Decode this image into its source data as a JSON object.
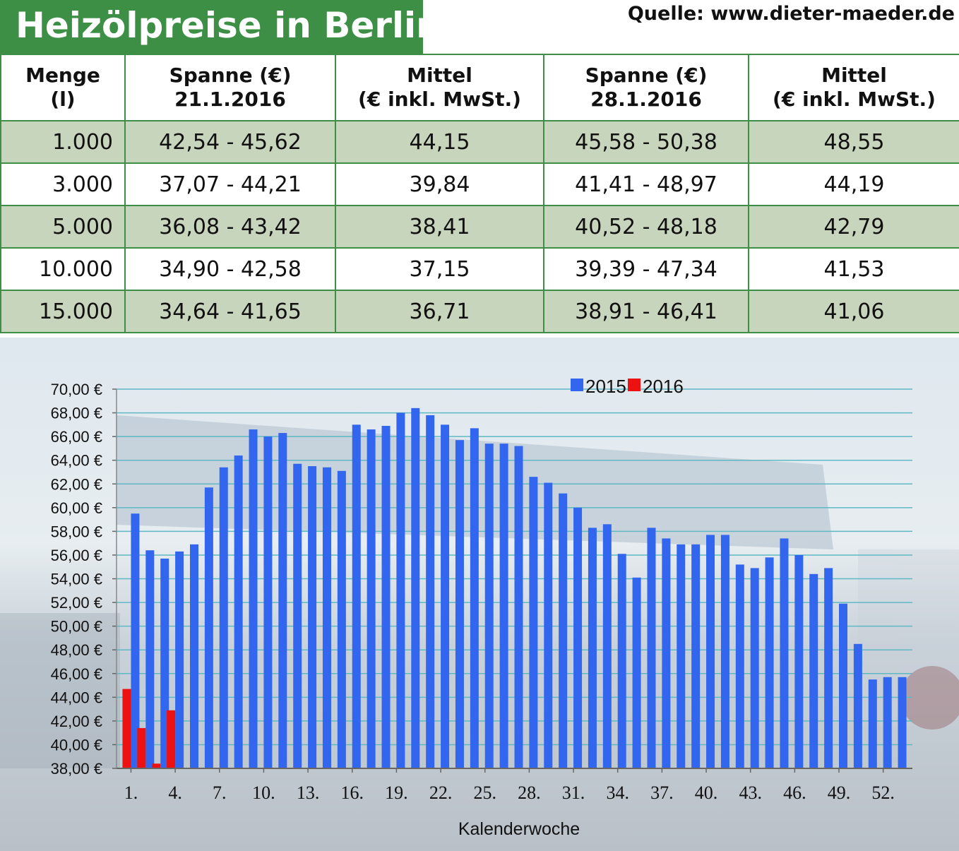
{
  "header": {
    "title": "Heizölpreise in Berlin",
    "source": "Quelle: www.dieter-maeder.de"
  },
  "table": {
    "columns": [
      {
        "line1": "Menge",
        "line2": "(l)"
      },
      {
        "line1": "Spanne (€)",
        "line2": "21.1.2016"
      },
      {
        "line1": "Mittel",
        "line2": "(€ inkl. MwSt.)"
      },
      {
        "line1": "Spanne (€)",
        "line2": "28.1.2016"
      },
      {
        "line1": "Mittel",
        "line2": "(€ inkl. MwSt.)"
      }
    ],
    "rows": [
      [
        "1.000",
        "42,54 - 45,62",
        "44,15",
        "45,58 - 50,38",
        "48,55"
      ],
      [
        "3.000",
        "37,07 - 44,21",
        "39,84",
        "41,41 - 48,97",
        "44,19"
      ],
      [
        "5.000",
        "36,08 - 43,42",
        "38,41",
        "40,52 - 48,18",
        "42,79"
      ],
      [
        "10.000",
        "34,90 - 42,58",
        "37,15",
        "39,39 - 47,34",
        "41,53"
      ],
      [
        "15.000",
        "34,64 - 41,65",
        "36,71",
        "38,91 - 46,41",
        "41,06"
      ]
    ]
  },
  "chart_data": {
    "type": "bar",
    "xlabel": "Kalenderwoche",
    "ylabel": "",
    "ylim": [
      38,
      70
    ],
    "yticks": [
      "38,00 €",
      "40,00 €",
      "42,00 €",
      "44,00 €",
      "46,00 €",
      "48,00 €",
      "50,00 €",
      "52,00 €",
      "54,00 €",
      "56,00 €",
      "58,00 €",
      "60,00 €",
      "62,00 €",
      "64,00 €",
      "66,00 €",
      "68,00 €",
      "70,00 €"
    ],
    "xticks": [
      "1.",
      "4.",
      "7.",
      "10.",
      "13.",
      "16.",
      "19.",
      "22.",
      "25.",
      "28.",
      "31.",
      "34.",
      "37.",
      "40.",
      "43.",
      "46.",
      "49.",
      "52."
    ],
    "legend_position": "top-center",
    "grid": true,
    "series": [
      {
        "name": "2015",
        "color": "#3366ee",
        "values": [
          59.5,
          56.4,
          55.7,
          56.3,
          56.9,
          61.7,
          63.4,
          64.4,
          66.6,
          66.0,
          66.3,
          63.7,
          63.5,
          63.4,
          63.1,
          67.0,
          66.6,
          66.9,
          68.0,
          68.4,
          67.8,
          67.0,
          65.7,
          66.7,
          65.4,
          65.4,
          65.2,
          62.6,
          62.1,
          61.2,
          60.0,
          58.3,
          58.6,
          56.1,
          54.1,
          58.3,
          57.4,
          56.9,
          56.9,
          57.7,
          57.7,
          55.2,
          54.9,
          55.8,
          57.4,
          56.0,
          54.4,
          54.9,
          51.9,
          48.5,
          45.5,
          45.7,
          45.7
        ]
      },
      {
        "name": "2016",
        "color": "#ee1111",
        "values": [
          44.7,
          41.4,
          38.4,
          42.9
        ]
      }
    ]
  }
}
